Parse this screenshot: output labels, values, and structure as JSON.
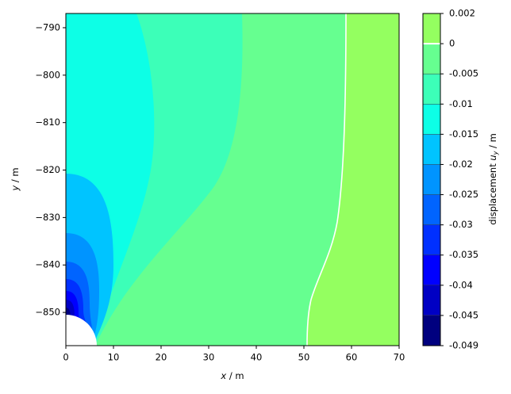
{
  "chart_data": {
    "type": "contour",
    "xlabel_parts": [
      "x",
      " / m"
    ],
    "ylabel_parts": [
      "y",
      " / m"
    ],
    "xlim": [
      0,
      70
    ],
    "xticks": [
      0,
      10,
      20,
      30,
      40,
      50,
      60,
      70
    ],
    "ylim": [
      -857,
      -787
    ],
    "yticks": [
      {
        "value": -790,
        "label": "−790"
      },
      {
        "value": -800,
        "label": "−800"
      },
      {
        "value": -810,
        "label": "−810"
      },
      {
        "value": -820,
        "label": "−820"
      },
      {
        "value": -830,
        "label": "−830"
      },
      {
        "value": -840,
        "label": "−840"
      },
      {
        "value": -850,
        "label": "−850"
      }
    ],
    "colorbar": {
      "label_parts": [
        "displacement ",
        "u",
        "y",
        " / m"
      ],
      "levels": [
        -0.049,
        -0.045,
        -0.04,
        -0.035,
        -0.03,
        -0.025,
        -0.02,
        -0.015,
        -0.01,
        -0.005,
        0,
        0.002
      ],
      "colors": [
        "#00007f",
        "#0000c4",
        "#0000ff",
        "#0030ff",
        "#0064ff",
        "#0094ff",
        "#00c4ff",
        "#0dffe6",
        "#3cffb8",
        "#66ff90",
        "#94ff60"
      ],
      "zero_line_color": "#ffffff"
    }
  }
}
